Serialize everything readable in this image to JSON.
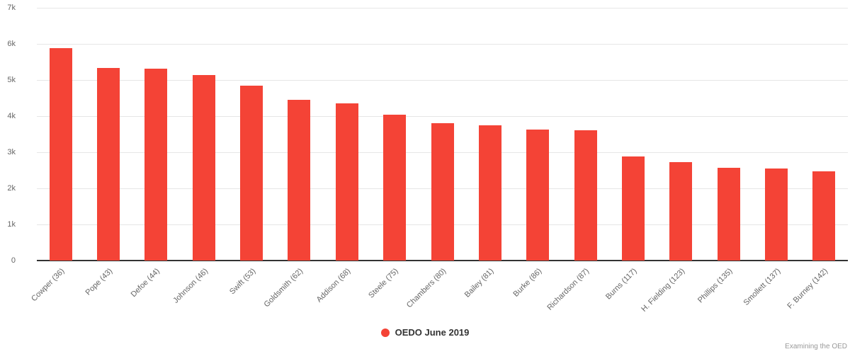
{
  "credits": "Examining the OED",
  "colors": {
    "bar": "#f44336",
    "gridline": "#e6e6e6",
    "axis_line": "#333333",
    "axis_label": "#666666",
    "legend_text": "#333333",
    "credits_text": "#999999"
  },
  "chart_data": {
    "type": "bar",
    "title": "",
    "xlabel": "",
    "ylabel": "",
    "categories": [
      "Cowper (36)",
      "Pope (43)",
      "Defoe (44)",
      "Johnson (46)",
      "Swift (53)",
      "Goldsmith (62)",
      "Addison (68)",
      "Steele (75)",
      "Chambers (80)",
      "Bailey (81)",
      "Burke (86)",
      "Richardson (87)",
      "Burns (117)",
      "H. Fielding (123)",
      "Phillips (135)",
      "Smollett (137)",
      "F. Burney (142)"
    ],
    "series": [
      {
        "name": "OEDO June 2019",
        "color": "#f44336",
        "values": [
          5880,
          5330,
          5320,
          5140,
          4840,
          4460,
          4350,
          4030,
          3800,
          3740,
          3630,
          3610,
          2890,
          2730,
          2570,
          2550,
          2480
        ]
      }
    ],
    "ylim": [
      0,
      7000
    ],
    "ytick_labels": [
      "0",
      "1k",
      "2k",
      "3k",
      "4k",
      "5k",
      "6k",
      "7k"
    ],
    "grid": "horizontal",
    "legend_position": "bottom-center"
  }
}
